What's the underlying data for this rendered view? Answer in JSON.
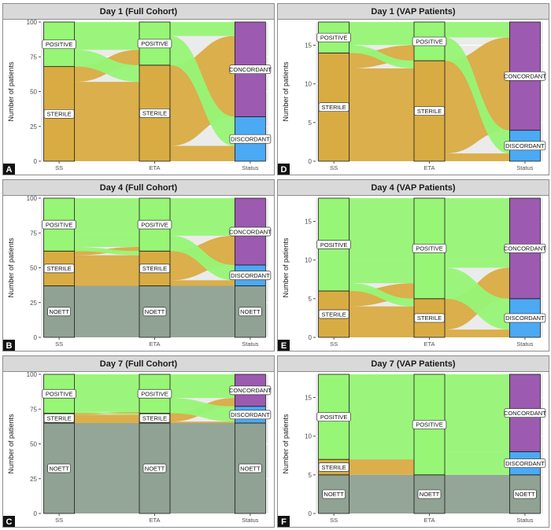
{
  "colors": {
    "panel_bg": "#ffffff",
    "strip_bg": "#d9d9d9",
    "frame": "#8c8c8c",
    "plot_bg": "#ebebeb",
    "POSITIVE": "#97f676",
    "STERILE": "#d9ac43",
    "NOETT": "#8fa293",
    "CONCORDANT": "#9c5ab0",
    "DISCORDANT": "#4ca9f3"
  },
  "chart_data": [
    {
      "type": "alluvial",
      "panel_letter": "A",
      "title": "Day 1 (Full Cohort)",
      "ylabel": "Number of patients",
      "ylim": [
        0,
        100
      ],
      "yticks": [
        0,
        25,
        50,
        75,
        100
      ],
      "axes": [
        "SS",
        "ETA",
        "Status"
      ],
      "strata": [
        [
          {
            "label": "STERILE",
            "value": 68
          },
          {
            "label": "POSITIVE",
            "value": 32
          }
        ],
        [
          {
            "label": "STERILE",
            "value": 69
          },
          {
            "label": "POSITIVE",
            "value": 31
          }
        ],
        [
          {
            "label": "DISCORDANT",
            "value": 32
          },
          {
            "label": "CONCORDANT",
            "value": 68
          }
        ]
      ],
      "flows": [
        [
          {
            "from": "STERILE",
            "to": "STERILE",
            "value": 57
          },
          {
            "from": "STERILE",
            "to": "POSITIVE",
            "value": 11
          },
          {
            "from": "POSITIVE",
            "to": "STERILE",
            "value": 12
          },
          {
            "from": "POSITIVE",
            "to": "POSITIVE",
            "value": 20
          }
        ],
        [
          {
            "from": "STERILE",
            "to": "DISCORDANT",
            "value": 11
          },
          {
            "from": "STERILE",
            "to": "CONCORDANT",
            "value": 58
          },
          {
            "from": "POSITIVE",
            "to": "DISCORDANT",
            "value": 21
          },
          {
            "from": "POSITIVE",
            "to": "CONCORDANT",
            "value": 10
          }
        ]
      ]
    },
    {
      "type": "alluvial",
      "panel_letter": "D",
      "title": "Day 1 (VAP Patients)",
      "ylabel": "Number of patients",
      "ylim": [
        0,
        18
      ],
      "yticks": [
        0,
        5,
        10,
        15
      ],
      "axes": [
        "SS",
        "ETA",
        "Status"
      ],
      "strata": [
        [
          {
            "label": "STERILE",
            "value": 14
          },
          {
            "label": "POSITIVE",
            "value": 4
          }
        ],
        [
          {
            "label": "STERILE",
            "value": 13
          },
          {
            "label": "POSITIVE",
            "value": 5
          }
        ],
        [
          {
            "label": "DISCORDANT",
            "value": 4
          },
          {
            "label": "CONCORDANT",
            "value": 14
          }
        ]
      ],
      "flows": [
        [
          {
            "from": "STERILE",
            "to": "STERILE",
            "value": 12
          },
          {
            "from": "STERILE",
            "to": "POSITIVE",
            "value": 2
          },
          {
            "from": "POSITIVE",
            "to": "STERILE",
            "value": 1
          },
          {
            "from": "POSITIVE",
            "to": "POSITIVE",
            "value": 3
          }
        ],
        [
          {
            "from": "STERILE",
            "to": "DISCORDANT",
            "value": 1
          },
          {
            "from": "STERILE",
            "to": "CONCORDANT",
            "value": 12
          },
          {
            "from": "POSITIVE",
            "to": "DISCORDANT",
            "value": 3
          },
          {
            "from": "POSITIVE",
            "to": "CONCORDANT",
            "value": 2
          }
        ]
      ]
    },
    {
      "type": "alluvial",
      "panel_letter": "B",
      "title": "Day 4 (Full Cohort)",
      "ylabel": "Number of patients",
      "ylim": [
        0,
        100
      ],
      "yticks": [
        0,
        25,
        50,
        75,
        100
      ],
      "axes": [
        "SS",
        "ETA",
        "Status"
      ],
      "strata": [
        [
          {
            "label": "NOETT",
            "value": 37
          },
          {
            "label": "STERILE",
            "value": 25
          },
          {
            "label": "POSITIVE",
            "value": 38
          }
        ],
        [
          {
            "label": "NOETT",
            "value": 37
          },
          {
            "label": "STERILE",
            "value": 25
          },
          {
            "label": "POSITIVE",
            "value": 38
          }
        ],
        [
          {
            "label": "NOETT",
            "value": 37
          },
          {
            "label": "DISCORDANT",
            "value": 15
          },
          {
            "label": "CONCORDANT",
            "value": 48
          }
        ]
      ],
      "flows": [
        [
          {
            "from": "NOETT",
            "to": "NOETT",
            "value": 37
          },
          {
            "from": "STERILE",
            "to": "STERILE",
            "value": 22
          },
          {
            "from": "STERILE",
            "to": "POSITIVE",
            "value": 3
          },
          {
            "from": "POSITIVE",
            "to": "STERILE",
            "value": 3
          },
          {
            "from": "POSITIVE",
            "to": "POSITIVE",
            "value": 35
          }
        ],
        [
          {
            "from": "NOETT",
            "to": "NOETT",
            "value": 37
          },
          {
            "from": "STERILE",
            "to": "DISCORDANT",
            "value": 4
          },
          {
            "from": "STERILE",
            "to": "CONCORDANT",
            "value": 21
          },
          {
            "from": "POSITIVE",
            "to": "DISCORDANT",
            "value": 11
          },
          {
            "from": "POSITIVE",
            "to": "CONCORDANT",
            "value": 27
          }
        ]
      ]
    },
    {
      "type": "alluvial",
      "panel_letter": "E",
      "title": "Day 4 (VAP Patients)",
      "ylabel": "Number of patients",
      "ylim": [
        0,
        18
      ],
      "yticks": [
        0,
        5,
        10,
        15
      ],
      "axes": [
        "SS",
        "ETA",
        "Status"
      ],
      "strata": [
        [
          {
            "label": "STERILE",
            "value": 6
          },
          {
            "label": "POSITIVE",
            "value": 12
          }
        ],
        [
          {
            "label": "STERILE",
            "value": 5
          },
          {
            "label": "POSITIVE",
            "value": 13
          }
        ],
        [
          {
            "label": "DISCORDANT",
            "value": 5
          },
          {
            "label": "CONCORDANT",
            "value": 13
          }
        ]
      ],
      "flows": [
        [
          {
            "from": "STERILE",
            "to": "STERILE",
            "value": 4
          },
          {
            "from": "STERILE",
            "to": "POSITIVE",
            "value": 2
          },
          {
            "from": "POSITIVE",
            "to": "STERILE",
            "value": 1
          },
          {
            "from": "POSITIVE",
            "to": "POSITIVE",
            "value": 11
          }
        ],
        [
          {
            "from": "STERILE",
            "to": "DISCORDANT",
            "value": 1
          },
          {
            "from": "STERILE",
            "to": "CONCORDANT",
            "value": 4
          },
          {
            "from": "POSITIVE",
            "to": "DISCORDANT",
            "value": 4
          },
          {
            "from": "POSITIVE",
            "to": "CONCORDANT",
            "value": 9
          }
        ]
      ]
    },
    {
      "type": "alluvial",
      "panel_letter": "C",
      "title": "Day 7 (Full Cohort)",
      "ylabel": "Number of patients",
      "ylim": [
        0,
        100
      ],
      "yticks": [
        0,
        25,
        50,
        75,
        100
      ],
      "axes": [
        "SS",
        "ETA",
        "Status"
      ],
      "strata": [
        [
          {
            "label": "NOETT",
            "value": 65
          },
          {
            "label": "STERILE",
            "value": 7
          },
          {
            "label": "POSITIVE",
            "value": 28
          }
        ],
        [
          {
            "label": "NOETT",
            "value": 65
          },
          {
            "label": "STERILE",
            "value": 7
          },
          {
            "label": "POSITIVE",
            "value": 28
          }
        ],
        [
          {
            "label": "NOETT",
            "value": 65
          },
          {
            "label": "DISCORDANT",
            "value": 12
          },
          {
            "label": "CONCORDANT",
            "value": 23
          }
        ]
      ],
      "flows": [
        [
          {
            "from": "NOETT",
            "to": "NOETT",
            "value": 65
          },
          {
            "from": "STERILE",
            "to": "STERILE",
            "value": 6
          },
          {
            "from": "STERILE",
            "to": "POSITIVE",
            "value": 1
          },
          {
            "from": "POSITIVE",
            "to": "STERILE",
            "value": 1
          },
          {
            "from": "POSITIVE",
            "to": "POSITIVE",
            "value": 27
          }
        ],
        [
          {
            "from": "NOETT",
            "to": "NOETT",
            "value": 65
          },
          {
            "from": "STERILE",
            "to": "DISCORDANT",
            "value": 1
          },
          {
            "from": "STERILE",
            "to": "CONCORDANT",
            "value": 6
          },
          {
            "from": "POSITIVE",
            "to": "DISCORDANT",
            "value": 11
          },
          {
            "from": "POSITIVE",
            "to": "CONCORDANT",
            "value": 17
          }
        ]
      ]
    },
    {
      "type": "alluvial",
      "panel_letter": "F",
      "title": "Day 7 (VAP Patients)",
      "ylabel": "Number of patients",
      "ylim": [
        0,
        18
      ],
      "yticks": [
        0,
        5,
        10,
        15
      ],
      "axes": [
        "SS",
        "ETA",
        "Status"
      ],
      "strata": [
        [
          {
            "label": "NOETT",
            "value": 5
          },
          {
            "label": "STERILE",
            "value": 2
          },
          {
            "label": "POSITIVE",
            "value": 11
          }
        ],
        [
          {
            "label": "NOETT",
            "value": 5
          },
          {
            "label": "POSITIVE",
            "value": 13
          }
        ],
        [
          {
            "label": "NOETT",
            "value": 5
          },
          {
            "label": "DISCORDANT",
            "value": 3
          },
          {
            "label": "CONCORDANT",
            "value": 10
          }
        ]
      ],
      "flows": [
        [
          {
            "from": "NOETT",
            "to": "NOETT",
            "value": 5
          },
          {
            "from": "STERILE",
            "to": "POSITIVE",
            "value": 2
          },
          {
            "from": "POSITIVE",
            "to": "POSITIVE",
            "value": 11
          }
        ],
        [
          {
            "from": "NOETT",
            "to": "NOETT",
            "value": 5
          },
          {
            "from": "POSITIVE",
            "to": "DISCORDANT",
            "value": 3
          },
          {
            "from": "POSITIVE",
            "to": "CONCORDANT",
            "value": 10
          }
        ]
      ]
    }
  ]
}
